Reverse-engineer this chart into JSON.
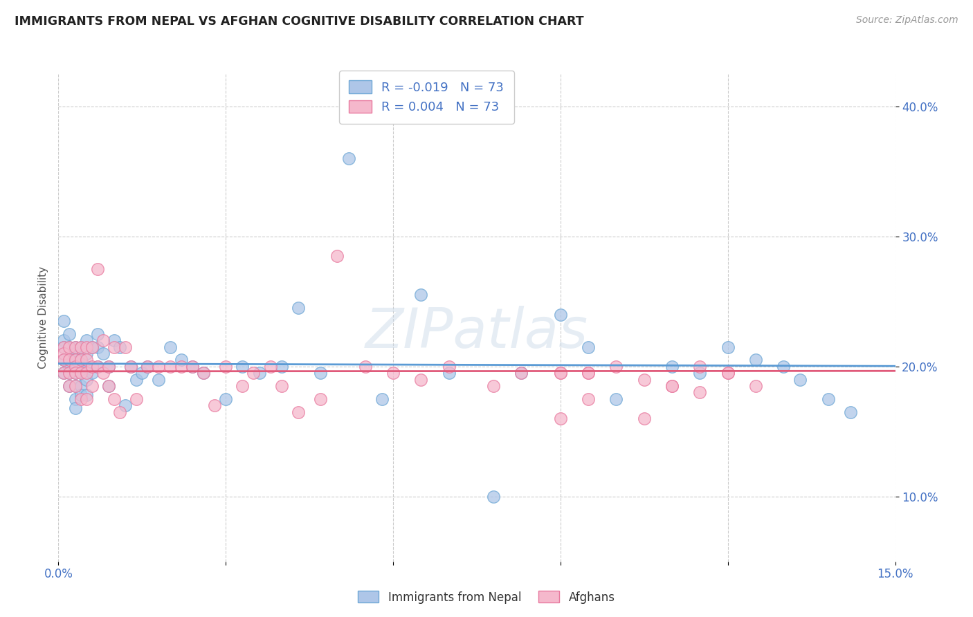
{
  "title": "IMMIGRANTS FROM NEPAL VS AFGHAN COGNITIVE DISABILITY CORRELATION CHART",
  "source": "Source: ZipAtlas.com",
  "ylabel": "Cognitive Disability",
  "watermark": "ZIPatlas",
  "xlim": [
    0.0,
    0.15
  ],
  "ylim": [
    0.05,
    0.425
  ],
  "xtick_vals": [
    0.0,
    0.03,
    0.06,
    0.09,
    0.12,
    0.15
  ],
  "xtick_labels": [
    "0.0%",
    "",
    "",
    "",
    "",
    "15.0%"
  ],
  "ytick_vals": [
    0.1,
    0.2,
    0.3,
    0.4
  ],
  "ytick_labels": [
    "10.0%",
    "20.0%",
    "30.0%",
    "40.0%"
  ],
  "nepal_color_fill": "#aec6e8",
  "nepal_color_edge": "#6fa8d6",
  "afghan_color_fill": "#f5b8cc",
  "afghan_color_edge": "#e87a9f",
  "nepal_line_color": "#5b9bd5",
  "afghan_line_color": "#e05a7a",
  "nepal_R": -0.019,
  "afghan_R": 0.004,
  "nepal_N": 73,
  "afghan_N": 73,
  "nepal_x": [
    0.001,
    0.001,
    0.001,
    0.001,
    0.001,
    0.002,
    0.002,
    0.002,
    0.002,
    0.002,
    0.002,
    0.003,
    0.003,
    0.003,
    0.003,
    0.003,
    0.003,
    0.003,
    0.003,
    0.004,
    0.004,
    0.004,
    0.004,
    0.004,
    0.004,
    0.005,
    0.005,
    0.005,
    0.005,
    0.005,
    0.006,
    0.006,
    0.007,
    0.007,
    0.007,
    0.008,
    0.009,
    0.009,
    0.01,
    0.011,
    0.012,
    0.013,
    0.014,
    0.015,
    0.016,
    0.018,
    0.02,
    0.022,
    0.024,
    0.026,
    0.03,
    0.033,
    0.036,
    0.04,
    0.043,
    0.047,
    0.052,
    0.058,
    0.065,
    0.07,
    0.078,
    0.083,
    0.09,
    0.095,
    0.1,
    0.11,
    0.115,
    0.12,
    0.125,
    0.13,
    0.133,
    0.138,
    0.142
  ],
  "nepal_y": [
    0.235,
    0.22,
    0.215,
    0.205,
    0.195,
    0.225,
    0.215,
    0.21,
    0.2,
    0.195,
    0.185,
    0.215,
    0.21,
    0.205,
    0.2,
    0.195,
    0.185,
    0.175,
    0.168,
    0.215,
    0.205,
    0.2,
    0.195,
    0.185,
    0.178,
    0.22,
    0.21,
    0.2,
    0.19,
    0.178,
    0.215,
    0.195,
    0.225,
    0.215,
    0.2,
    0.21,
    0.2,
    0.185,
    0.22,
    0.215,
    0.17,
    0.2,
    0.19,
    0.195,
    0.2,
    0.19,
    0.215,
    0.205,
    0.2,
    0.195,
    0.175,
    0.2,
    0.195,
    0.2,
    0.245,
    0.195,
    0.36,
    0.175,
    0.255,
    0.195,
    0.1,
    0.195,
    0.24,
    0.215,
    0.175,
    0.2,
    0.195,
    0.215,
    0.205,
    0.2,
    0.19,
    0.175,
    0.165
  ],
  "afghan_x": [
    0.001,
    0.001,
    0.001,
    0.001,
    0.002,
    0.002,
    0.002,
    0.002,
    0.003,
    0.003,
    0.003,
    0.003,
    0.003,
    0.004,
    0.004,
    0.004,
    0.004,
    0.005,
    0.005,
    0.005,
    0.005,
    0.006,
    0.006,
    0.006,
    0.007,
    0.007,
    0.008,
    0.008,
    0.009,
    0.009,
    0.01,
    0.01,
    0.011,
    0.012,
    0.013,
    0.014,
    0.016,
    0.018,
    0.02,
    0.022,
    0.024,
    0.026,
    0.028,
    0.03,
    0.033,
    0.035,
    0.038,
    0.04,
    0.043,
    0.047,
    0.05,
    0.055,
    0.06,
    0.065,
    0.07,
    0.078,
    0.083,
    0.09,
    0.095,
    0.1,
    0.105,
    0.11,
    0.115,
    0.12,
    0.095,
    0.09,
    0.105,
    0.11,
    0.115,
    0.12,
    0.125,
    0.095,
    0.09
  ],
  "afghan_y": [
    0.215,
    0.21,
    0.205,
    0.195,
    0.215,
    0.205,
    0.195,
    0.185,
    0.215,
    0.205,
    0.2,
    0.195,
    0.185,
    0.215,
    0.205,
    0.195,
    0.175,
    0.215,
    0.205,
    0.195,
    0.175,
    0.215,
    0.2,
    0.185,
    0.275,
    0.2,
    0.22,
    0.195,
    0.2,
    0.185,
    0.215,
    0.175,
    0.165,
    0.215,
    0.2,
    0.175,
    0.2,
    0.2,
    0.2,
    0.2,
    0.2,
    0.195,
    0.17,
    0.2,
    0.185,
    0.195,
    0.2,
    0.185,
    0.165,
    0.175,
    0.285,
    0.2,
    0.195,
    0.19,
    0.2,
    0.185,
    0.195,
    0.195,
    0.195,
    0.2,
    0.19,
    0.185,
    0.2,
    0.195,
    0.195,
    0.16,
    0.16,
    0.185,
    0.18,
    0.195,
    0.185,
    0.175,
    0.195
  ],
  "legend_nepal_label": "Immigrants from Nepal",
  "legend_afghan_label": "Afghans",
  "background_color": "#ffffff",
  "grid_color": "#cccccc"
}
